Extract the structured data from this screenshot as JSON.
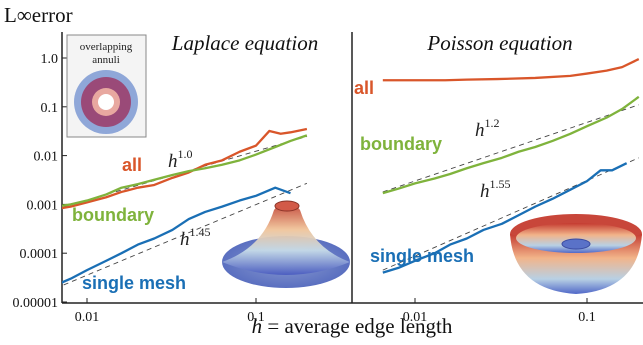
{
  "figure": {
    "ylabel": "L∞error",
    "xlabel_var": "h",
    "xlabel_rest": " = average edge length"
  },
  "chart_data": [
    {
      "type": "line",
      "title": "Laplace equation",
      "xscale": "log",
      "yscale": "log",
      "xlim": [
        0.0065,
        0.2
      ],
      "ylim": [
        8e-06,
        3
      ],
      "xticks": [
        "0.01",
        "0.1"
      ],
      "yticks": [
        "0.00001",
        "0.0001",
        "0.001",
        "0.01",
        "0.1",
        "1.0"
      ],
      "inset_label": "overlapping annuli",
      "series": [
        {
          "name": "all",
          "color": "#d9562a",
          "x": [
            0.0065,
            0.008,
            0.01,
            0.013,
            0.016,
            0.02,
            0.025,
            0.032,
            0.04,
            0.05,
            0.063,
            0.08,
            0.1,
            0.12,
            0.14,
            0.16,
            0.2
          ],
          "y": [
            0.0008,
            0.0009,
            0.0011,
            0.0014,
            0.0018,
            0.0022,
            0.0025,
            0.0035,
            0.0045,
            0.0065,
            0.008,
            0.012,
            0.016,
            0.032,
            0.028,
            0.03,
            0.035
          ]
        },
        {
          "name": "boundary",
          "color": "#7fb33c",
          "x": [
            0.0065,
            0.008,
            0.01,
            0.013,
            0.016,
            0.02,
            0.025,
            0.032,
            0.04,
            0.05,
            0.063,
            0.08,
            0.1,
            0.13,
            0.16,
            0.2
          ],
          "y": [
            0.0009,
            0.001,
            0.0012,
            0.0016,
            0.0022,
            0.0026,
            0.0032,
            0.004,
            0.0048,
            0.0055,
            0.0065,
            0.008,
            0.0105,
            0.015,
            0.02,
            0.026
          ]
        },
        {
          "name": "single mesh",
          "color": "#1a6fb5",
          "x": [
            0.0065,
            0.008,
            0.01,
            0.013,
            0.016,
            0.02,
            0.025,
            0.032,
            0.04,
            0.05,
            0.063,
            0.08,
            0.1,
            0.13,
            0.16
          ],
          "y": [
            2.2e-05,
            3e-05,
            4.5e-05,
            7e-05,
            0.0001,
            0.00015,
            0.0002,
            0.0003,
            0.0005,
            0.0007,
            0.0009,
            0.0012,
            0.0015,
            0.0022,
            0.0017
          ]
        }
      ],
      "reference_lines": [
        {
          "label_base": "h",
          "label_exp": "1.0",
          "x": [
            0.0065,
            0.2
          ],
          "y": [
            0.0008,
            0.0246
          ]
        },
        {
          "label_base": "h",
          "label_exp": "1.45",
          "x": [
            0.0065,
            0.2
          ],
          "y": [
            1.9e-05,
            0.0027
          ]
        }
      ]
    },
    {
      "type": "line",
      "title": "Poisson equation",
      "xscale": "log",
      "yscale": "log",
      "xlim": [
        0.0065,
        0.2
      ],
      "ylim": [
        8e-06,
        3
      ],
      "xticks": [
        "0.01",
        "0.1"
      ],
      "series": [
        {
          "name": "all",
          "color": "#d9562a",
          "x": [
            0.0065,
            0.01,
            0.015,
            0.02,
            0.03,
            0.05,
            0.08,
            0.1,
            0.13,
            0.16,
            0.2
          ],
          "y": [
            0.35,
            0.35,
            0.35,
            0.36,
            0.37,
            0.39,
            0.43,
            0.48,
            0.55,
            0.65,
            0.95
          ]
        },
        {
          "name": "boundary",
          "color": "#7fb33c",
          "x": [
            0.0065,
            0.008,
            0.01,
            0.013,
            0.016,
            0.02,
            0.025,
            0.032,
            0.04,
            0.05,
            0.063,
            0.08,
            0.1,
            0.13,
            0.16,
            0.2
          ],
          "y": [
            0.0017,
            0.0021,
            0.0027,
            0.0034,
            0.0042,
            0.0055,
            0.007,
            0.009,
            0.012,
            0.015,
            0.02,
            0.028,
            0.04,
            0.06,
            0.09,
            0.16
          ]
        },
        {
          "name": "single mesh",
          "color": "#1a6fb5",
          "x": [
            0.0065,
            0.008,
            0.01,
            0.013,
            0.016,
            0.02,
            0.025,
            0.032,
            0.04,
            0.05,
            0.063,
            0.08,
            0.1,
            0.12,
            0.14,
            0.17
          ],
          "y": [
            4e-05,
            5e-05,
            7e-05,
            0.0001,
            0.00015,
            0.0002,
            0.0003,
            0.0004,
            0.0006,
            0.0009,
            0.0013,
            0.002,
            0.003,
            0.005,
            0.005,
            0.007
          ]
        }
      ],
      "reference_lines": [
        {
          "label_base": "h",
          "label_exp": "1.2",
          "x": [
            0.0065,
            0.2
          ],
          "y": [
            0.0018,
            0.11
          ]
        },
        {
          "label_base": "h",
          "label_exp": "1.55",
          "x": [
            0.0065,
            0.2
          ],
          "y": [
            4.5e-05,
            0.009
          ]
        }
      ]
    }
  ]
}
